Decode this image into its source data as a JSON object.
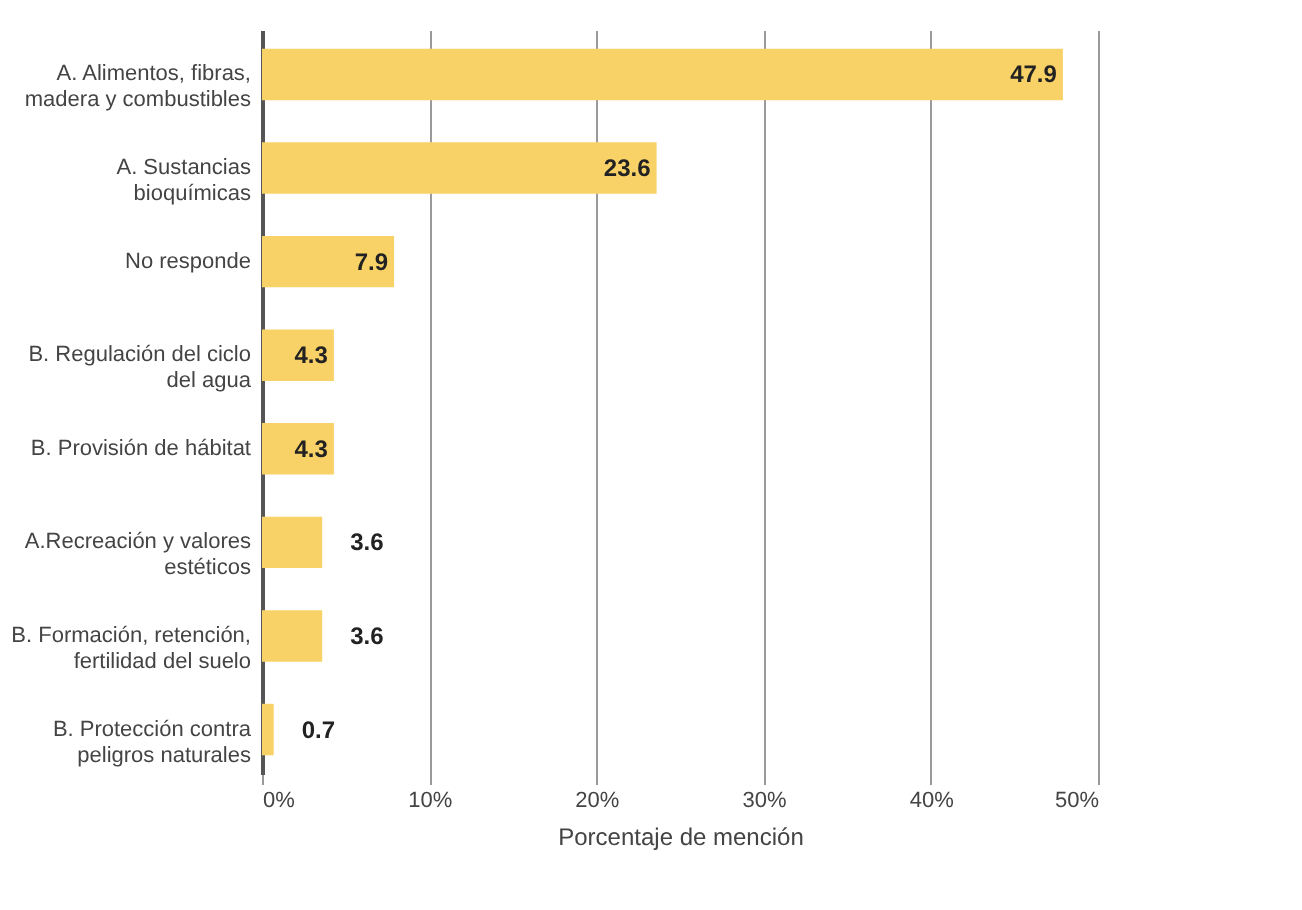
{
  "chart_data": {
    "type": "bar",
    "orientation": "horizontal",
    "categories": [
      "A. Alimentos, fibras, madera y combustibles",
      "A. Sustancias bioquímicas",
      "No responde",
      "B. Regulación del ciclo del agua",
      "B. Provisión de hábitat",
      "A.Recreación y valores estéticos",
      "B. Formación, retención, fertilidad del suelo",
      "B. Protección contra peligros naturales"
    ],
    "values": [
      47.9,
      23.6,
      7.9,
      4.3,
      4.3,
      3.6,
      3.6,
      0.7
    ],
    "color": "#f9d267",
    "xlim": [
      0,
      50
    ],
    "xticks": [
      {
        "value": 0,
        "label": "0%"
      },
      {
        "value": 10,
        "label": "10%"
      },
      {
        "value": 20,
        "label": "20%"
      },
      {
        "value": 30,
        "label": "30%"
      },
      {
        "value": 40,
        "label": "40%"
      },
      {
        "value": 50,
        "label": "50%"
      }
    ],
    "xlabel": "Porcentaje de mención",
    "grid": "x",
    "data_labels": true
  }
}
